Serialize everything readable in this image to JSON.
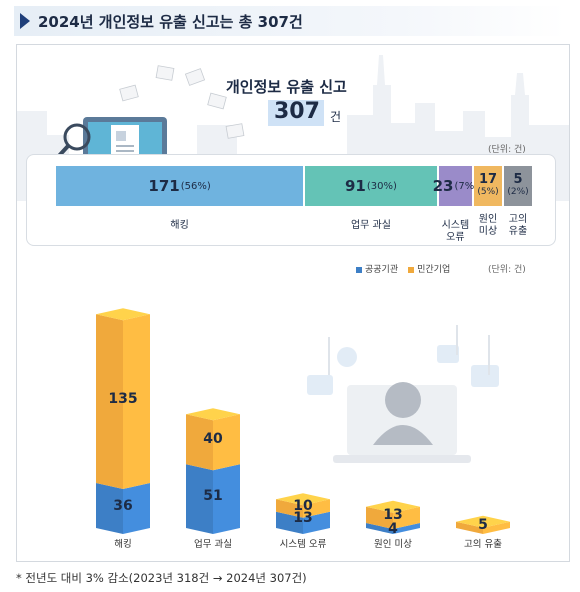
{
  "title": "2024년 개인정보 유출 신고는 총 307건",
  "headline": "개인정보 유출 신고",
  "total": {
    "value": "307",
    "unit": "건"
  },
  "unit_note": "(단위: 건)",
  "footnote": "* 전년도 대비 3% 감소(2023년 318건 → 2024년 307건)",
  "colors": {
    "public": "#3d7fc6",
    "private": "#f0a93c",
    "hacking": "#6fb3df",
    "mistake": "#64c3b6",
    "system": "#9a8bc9",
    "unknown": "#f0b860",
    "intentional": "#8d939b"
  },
  "icons": [
    "computer-icon",
    "magnifier-icon",
    "padlock-icon",
    "document-icon",
    "hacker-icon",
    "worker-icon"
  ],
  "chart_data": [
    {
      "type": "bar",
      "orientation": "horizontal-stacked-100",
      "categories": [
        "해킹",
        "업무 과실",
        "시스템 오류",
        "원인 미상",
        "고의 유출"
      ],
      "category_labels_stacked": [
        "해킹",
        "업무 과실",
        "시스템\n오류",
        "원인\n미상",
        "고의\n유출"
      ],
      "values": [
        171,
        91,
        23,
        17,
        5
      ],
      "percents": [
        "(56%)",
        "(30%)",
        "(7%)",
        "(5%)",
        "(2%)"
      ],
      "unit": "(단위: 건)"
    },
    {
      "type": "bar",
      "orientation": "vertical-stacked",
      "categories": [
        "해킹",
        "업무 과실",
        "시스템 오류",
        "원인 미상",
        "고의 유출"
      ],
      "series": [
        {
          "name": "공공기관",
          "values": [
            36,
            51,
            13,
            4,
            0
          ]
        },
        {
          "name": "민간기업",
          "values": [
            135,
            40,
            10,
            13,
            5
          ]
        }
      ],
      "legend": "top-right",
      "unit": "(단위: 건)"
    }
  ]
}
